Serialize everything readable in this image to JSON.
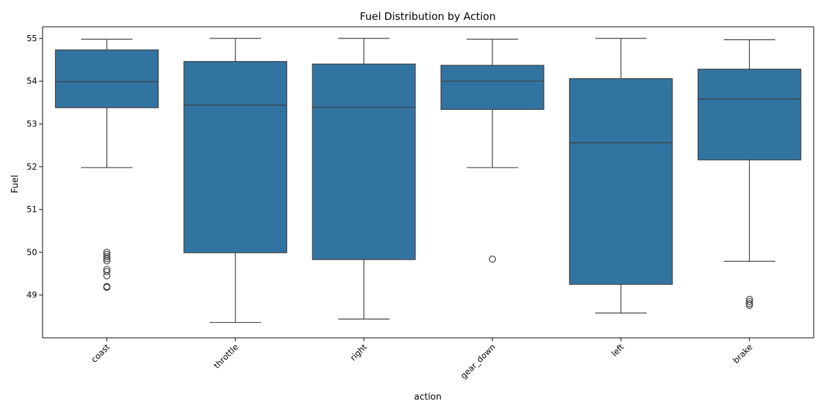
{
  "chart_data": {
    "type": "box",
    "title": "Fuel Distribution by Action",
    "xlabel": "action",
    "ylabel": "Fuel",
    "ylim": [
      48.0,
      55.5
    ],
    "yticks": [
      49,
      50,
      51,
      52,
      53,
      54,
      55
    ],
    "categories": [
      "coast",
      "throttle",
      "right",
      "gear_down",
      "left",
      "brake"
    ],
    "box_color": "#3274a1",
    "edge_color": "#3d3d3d",
    "grid": false,
    "legend": "none",
    "boxes": [
      {
        "category": "coast",
        "whisker_low": 51.98,
        "q1": 53.38,
        "median": 53.99,
        "q3": 54.73,
        "whisker_high": 54.98,
        "outliers": [
          50.0,
          49.95,
          49.9,
          49.85,
          49.8,
          49.6,
          49.55,
          49.45,
          49.2,
          49.18
        ]
      },
      {
        "category": "throttle",
        "whisker_low": 48.36,
        "q1": 49.99,
        "median": 53.44,
        "q3": 54.46,
        "whisker_high": 55.0,
        "outliers": []
      },
      {
        "category": "right",
        "whisker_low": 48.44,
        "q1": 49.83,
        "median": 53.39,
        "q3": 54.4,
        "whisker_high": 55.0,
        "outliers": []
      },
      {
        "category": "gear_down",
        "whisker_low": 51.98,
        "q1": 53.34,
        "median": 54.0,
        "q3": 54.37,
        "whisker_high": 54.98,
        "outliers": [
          49.84
        ]
      },
      {
        "category": "left",
        "whisker_low": 48.58,
        "q1": 49.25,
        "median": 52.56,
        "q3": 54.06,
        "whisker_high": 55.0,
        "outliers": []
      },
      {
        "category": "brake",
        "whisker_low": 49.79,
        "q1": 52.16,
        "median": 53.58,
        "q3": 54.28,
        "whisker_high": 54.97,
        "outliers": [
          48.9,
          48.85,
          48.8,
          48.76
        ]
      }
    ]
  }
}
